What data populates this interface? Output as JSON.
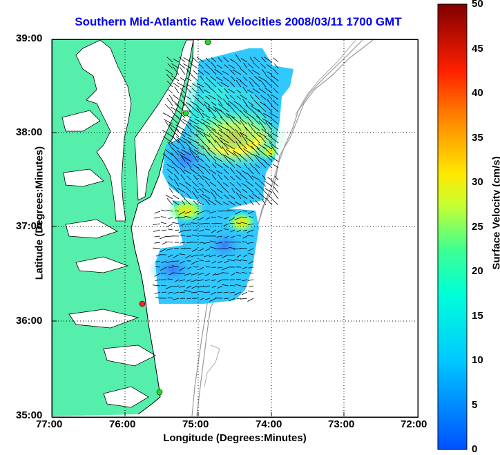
{
  "chart_data": {
    "type": "map",
    "title": "Southern Mid-Atlantic Raw Velocities 2008/03/11 1700 GMT",
    "xlabel": "Longitude (Degrees:Minutes)",
    "ylabel": "Latitude (Degrees:Minutes)",
    "colorbar_label": "Surface Velocity (cm/s)",
    "x_ticks": [
      "77:00",
      "76:00",
      "75:00",
      "74:00",
      "73:00",
      "72:00"
    ],
    "y_ticks": [
      "39:00",
      "38:00",
      "37:00",
      "36:00",
      "35:00"
    ],
    "colorbar_ticks": [
      "0",
      "5",
      "10",
      "15",
      "20",
      "25",
      "30",
      "35",
      "40",
      "45",
      "50"
    ],
    "colorbar_range": [
      0,
      50
    ],
    "grid": true,
    "land_color": "#55eeaa",
    "colors": {
      "title": "#0000ee",
      "low": "#0050ff",
      "mid": "#00e8ff",
      "high": "#ffff00",
      "max": "#800000",
      "station": "#22dd22",
      "station_red": "#ff2222"
    }
  }
}
